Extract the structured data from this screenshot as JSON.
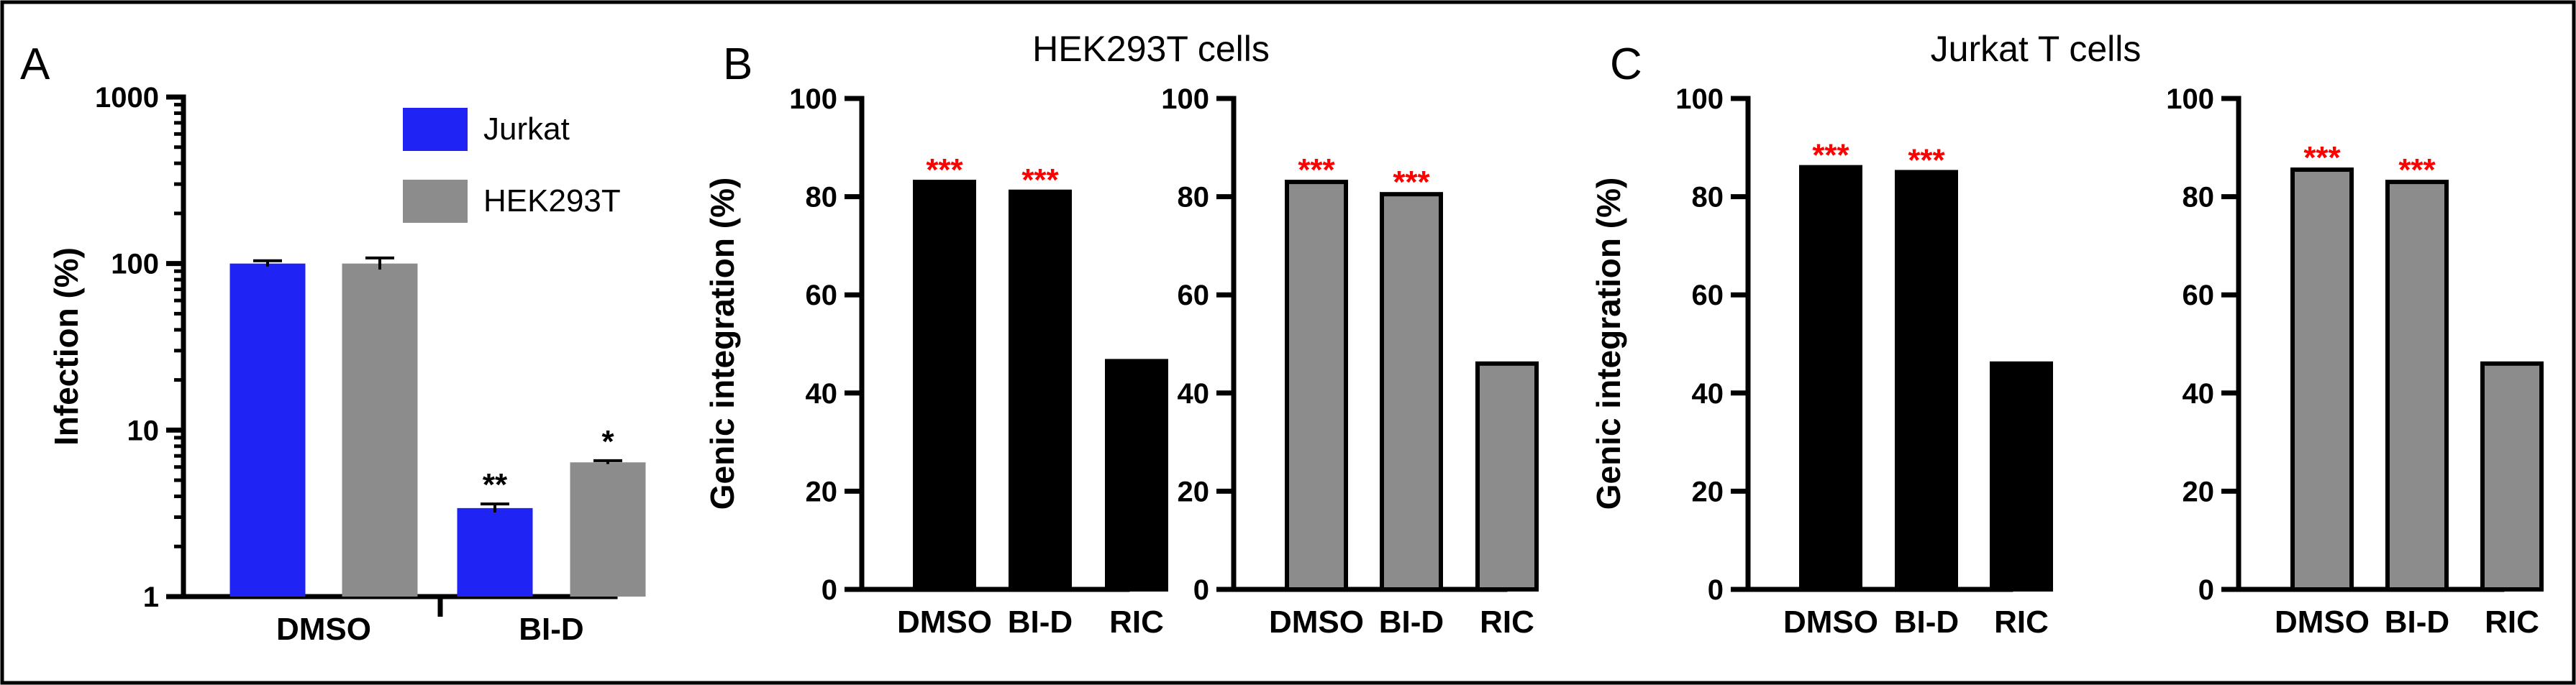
{
  "figure": {
    "panel_letters": [
      "A",
      "B",
      "C"
    ],
    "titles": {
      "B": "HEK293T cells",
      "C": "Jurkat T cells"
    },
    "colors": {
      "blue": "#1f24f5",
      "black": "#000000",
      "gray": "#8c8c8c",
      "star": "#ff0000"
    }
  },
  "chart_data": [
    {
      "panel": "A",
      "type": "bar",
      "ylabel": "Infection (%)",
      "xlabel": "",
      "y_scale": "log",
      "ylim": [
        1,
        1000
      ],
      "yticks": [
        "1",
        "10",
        "100",
        "1000"
      ],
      "categories": [
        "DMSO",
        "BI-D"
      ],
      "series": [
        {
          "name": "Jurkat",
          "color": "#1f24f5",
          "values": [
            100,
            3.4
          ],
          "errors": [
            4,
            0.2
          ],
          "annotations": [
            "",
            "**"
          ]
        },
        {
          "name": "HEK293T",
          "color": "#8c8c8c",
          "values": [
            100,
            6.4
          ],
          "errors": [
            8,
            0.15
          ],
          "annotations": [
            "",
            "*"
          ]
        }
      ],
      "legend": "top-right",
      "grid": false
    },
    {
      "panel": "B",
      "type": "bar",
      "title": "HEK293T cells",
      "ylabel": "Genic integration (%)",
      "ylim": [
        0,
        100
      ],
      "yticks": [
        "0",
        "20",
        "40",
        "60",
        "80",
        "100"
      ],
      "categories": [
        "DMSO",
        "BI-D",
        "RIC"
      ],
      "values": [
        83,
        81,
        46.5
      ],
      "color": "#000000",
      "annotations": [
        "***",
        "***",
        ""
      ],
      "grid": false
    },
    {
      "panel": "B",
      "type": "bar",
      "ylabel": "",
      "ylim": [
        0,
        100
      ],
      "yticks": [
        "0",
        "20",
        "40",
        "60",
        "80",
        "100"
      ],
      "categories": [
        "DMSO",
        "BI-D",
        "RIC"
      ],
      "values": [
        83,
        80.5,
        46
      ],
      "color": "#8c8c8c",
      "annotations": [
        "***",
        "***",
        ""
      ],
      "grid": false
    },
    {
      "panel": "C",
      "type": "bar",
      "title": "Jurkat T cells",
      "ylabel": "Genic integration (%)",
      "ylim": [
        0,
        100
      ],
      "yticks": [
        "0",
        "20",
        "40",
        "60",
        "80",
        "100"
      ],
      "categories": [
        "DMSO",
        "BI-D",
        "RIC"
      ],
      "values": [
        86,
        85,
        46
      ],
      "color": "#000000",
      "annotations": [
        "***",
        "***",
        ""
      ],
      "grid": false
    },
    {
      "panel": "C",
      "type": "bar",
      "ylabel": "",
      "ylim": [
        0,
        100
      ],
      "yticks": [
        "0",
        "20",
        "40",
        "60",
        "80",
        "100"
      ],
      "categories": [
        "DMSO",
        "BI-D",
        "RIC"
      ],
      "values": [
        85.5,
        83,
        46
      ],
      "color": "#8c8c8c",
      "annotations": [
        "***",
        "***",
        ""
      ],
      "grid": false
    }
  ]
}
